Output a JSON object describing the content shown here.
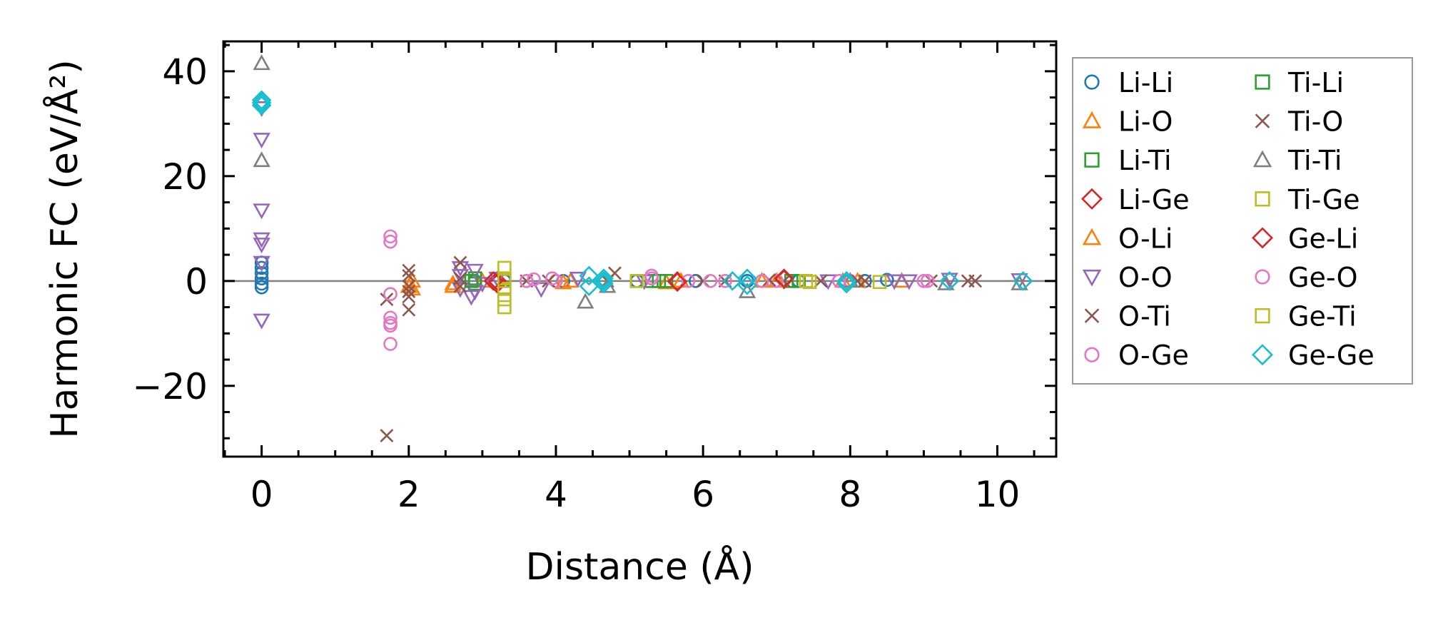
{
  "chart_data": {
    "type": "scatter",
    "title": "",
    "xlabel": "Distance (Å)",
    "ylabel": "Harmonic FC (eV/Å²)",
    "xlim": [
      -0.52,
      10.8
    ],
    "ylim": [
      -33.5,
      45.7
    ],
    "xticks": [
      0,
      2,
      4,
      6,
      8,
      10
    ],
    "xtick_labels": [
      "0",
      "2",
      "4",
      "6",
      "8",
      "10"
    ],
    "yticks": [
      -20,
      0,
      20,
      40
    ],
    "ytick_labels": [
      "−20",
      "0",
      "20",
      "40"
    ],
    "x_minor_step": 0.5,
    "y_minor_step": 5,
    "grid": false,
    "reference_line_y": 0,
    "legend_placement": "outside-right",
    "series": [
      {
        "name": "Li-Li",
        "color": "#1f77b4",
        "marker": "circle",
        "points": [
          [
            0,
            3.5
          ],
          [
            0,
            2.5
          ],
          [
            0,
            1.5
          ],
          [
            0,
            0.5
          ],
          [
            0,
            -0.5
          ],
          [
            0,
            -1.2
          ],
          [
            2.9,
            0
          ],
          [
            3.3,
            0
          ],
          [
            4.1,
            0
          ],
          [
            5.1,
            0
          ],
          [
            5.9,
            0
          ],
          [
            6.6,
            0
          ],
          [
            7.3,
            0
          ],
          [
            8.2,
            0
          ],
          [
            8.5,
            0.2
          ]
        ]
      },
      {
        "name": "Li-O",
        "color": "#ff7f0e",
        "marker": "triangle-up",
        "points": [
          [
            2.0,
            -1
          ],
          [
            2.6,
            -0.5
          ],
          [
            2.6,
            -1
          ],
          [
            3.0,
            0
          ],
          [
            4.2,
            0
          ],
          [
            5.5,
            -0.3
          ],
          [
            6.8,
            0
          ],
          [
            7.9,
            0
          ],
          [
            8.1,
            0
          ],
          [
            8.7,
            0
          ]
        ]
      },
      {
        "name": "Li-Ti",
        "color": "#2ca02c",
        "marker": "square",
        "points": [
          [
            2.9,
            0.5
          ],
          [
            2.9,
            -0.5
          ],
          [
            5.3,
            0
          ],
          [
            5.5,
            0
          ],
          [
            7.2,
            0
          ]
        ]
      },
      {
        "name": "Li-Ge",
        "color": "#d62728",
        "marker": "diamond",
        "points": [
          [
            3.2,
            0
          ],
          [
            3.2,
            -0.5
          ],
          [
            5.65,
            0
          ],
          [
            7.1,
            0.3
          ]
        ]
      },
      {
        "name": "O-Li",
        "color": "#ff7f0e",
        "marker": "triangle-up",
        "points": [
          [
            2.05,
            0
          ],
          [
            2.05,
            -1.5
          ],
          [
            2.6,
            -1
          ],
          [
            4.1,
            -0.3
          ],
          [
            5.7,
            0
          ],
          [
            7.0,
            0
          ]
        ]
      },
      {
        "name": "O-O",
        "color": "#9467bd",
        "marker": "triangle-down",
        "points": [
          [
            0,
            33
          ],
          [
            0,
            27
          ],
          [
            0,
            13.5
          ],
          [
            0,
            8
          ],
          [
            0,
            7
          ],
          [
            0,
            3.5
          ],
          [
            0,
            -7.5
          ],
          [
            2.7,
            2.5
          ],
          [
            2.7,
            1
          ],
          [
            2.7,
            -1.5
          ],
          [
            2.85,
            -3
          ],
          [
            2.9,
            2
          ],
          [
            2.9,
            -2
          ],
          [
            3.0,
            -0.5
          ],
          [
            3.2,
            0.5
          ],
          [
            3.8,
            -1.5
          ],
          [
            4.3,
            0.5
          ],
          [
            5.2,
            0
          ],
          [
            7.7,
            0
          ],
          [
            8.6,
            0
          ],
          [
            8.8,
            0
          ],
          [
            9.35,
            0.3
          ],
          [
            10.3,
            0.2
          ]
        ]
      },
      {
        "name": "O-Ti",
        "color": "#8c564b",
        "marker": "x",
        "points": [
          [
            1.7,
            -3.5
          ],
          [
            2.0,
            2
          ],
          [
            2.0,
            1
          ],
          [
            2.0,
            -1
          ],
          [
            2.0,
            -2
          ],
          [
            2.0,
            -3
          ],
          [
            2.0,
            -5.5
          ],
          [
            2.7,
            3.5
          ],
          [
            2.7,
            -1
          ],
          [
            3.6,
            0
          ],
          [
            4.8,
            1.5
          ],
          [
            6.3,
            0
          ],
          [
            7.1,
            0
          ],
          [
            7.6,
            0
          ],
          [
            8.2,
            0
          ],
          [
            9.1,
            0
          ],
          [
            9.6,
            0
          ],
          [
            9.7,
            0
          ]
        ]
      },
      {
        "name": "O-Ge",
        "color": "#e377c2",
        "marker": "circle",
        "points": [
          [
            1.75,
            8.5
          ],
          [
            1.75,
            7.5
          ],
          [
            1.75,
            -2.5
          ],
          [
            1.75,
            -7
          ],
          [
            1.75,
            -8
          ],
          [
            1.75,
            -8.5
          ],
          [
            1.75,
            -12
          ],
          [
            3.6,
            0
          ],
          [
            3.7,
            0.3
          ],
          [
            4.0,
            0
          ],
          [
            5.3,
            1
          ],
          [
            5.8,
            0
          ],
          [
            6.3,
            0
          ],
          [
            7.0,
            0
          ],
          [
            8.0,
            0
          ],
          [
            9.0,
            0
          ]
        ]
      },
      {
        "name": "Ti-Li",
        "color": "#2ca02c",
        "marker": "square",
        "points": [
          [
            2.85,
            0
          ],
          [
            5.4,
            0
          ],
          [
            7.3,
            0
          ]
        ]
      },
      {
        "name": "Ti-O",
        "color": "#8c564b",
        "marker": "x",
        "points": [
          [
            1.7,
            -29.5
          ],
          [
            2.7,
            0.5
          ],
          [
            3.9,
            0
          ],
          [
            4.7,
            0
          ],
          [
            6.0,
            0
          ],
          [
            6.9,
            0.2
          ],
          [
            8.1,
            0
          ]
        ]
      },
      {
        "name": "Ti-Ti",
        "color": "#7f7f7f",
        "marker": "triangle-up",
        "points": [
          [
            0,
            41.5
          ],
          [
            0,
            23
          ],
          [
            4.4,
            -4
          ],
          [
            4.7,
            -1
          ],
          [
            6.6,
            -2
          ],
          [
            8.0,
            0
          ],
          [
            9.3,
            -0.5
          ],
          [
            10.3,
            -0.5
          ]
        ]
      },
      {
        "name": "Ti-Ge",
        "color": "#bcbd22",
        "marker": "square",
        "points": [
          [
            3.3,
            2.5
          ],
          [
            3.3,
            0.5
          ],
          [
            3.3,
            -1.5
          ],
          [
            3.3,
            -3.5
          ],
          [
            3.3,
            -5
          ],
          [
            5.1,
            0
          ],
          [
            7.4,
            0
          ]
        ]
      },
      {
        "name": "Ge-Li",
        "color": "#d62728",
        "marker": "diamond",
        "points": [
          [
            3.15,
            0
          ],
          [
            5.65,
            -0.2
          ],
          [
            7.1,
            0.5
          ]
        ]
      },
      {
        "name": "Ge-O",
        "color": "#e377c2",
        "marker": "circle",
        "points": [
          [
            3.6,
            0
          ],
          [
            3.95,
            0.5
          ],
          [
            5.3,
            0.5
          ],
          [
            6.1,
            0
          ],
          [
            6.8,
            0
          ],
          [
            7.85,
            0
          ],
          [
            9.05,
            0
          ]
        ]
      },
      {
        "name": "Ge-Ti",
        "color": "#bcbd22",
        "marker": "square",
        "points": [
          [
            3.3,
            0
          ],
          [
            5.1,
            0
          ],
          [
            7.45,
            -0.2
          ],
          [
            8.4,
            -0.2
          ]
        ]
      },
      {
        "name": "Ge-Ge",
        "color": "#17becf",
        "marker": "diamond",
        "points": [
          [
            0,
            34.5
          ],
          [
            0,
            34
          ],
          [
            0,
            33.5
          ],
          [
            4.45,
            1
          ],
          [
            4.45,
            -1
          ],
          [
            4.65,
            0.5
          ],
          [
            4.65,
            0
          ],
          [
            4.65,
            -0.5
          ],
          [
            6.4,
            0
          ],
          [
            6.6,
            0.5
          ],
          [
            6.6,
            -0.8
          ],
          [
            7.95,
            0
          ],
          [
            7.95,
            -0.5
          ],
          [
            9.35,
            0
          ],
          [
            10.35,
            0
          ]
        ]
      }
    ]
  }
}
